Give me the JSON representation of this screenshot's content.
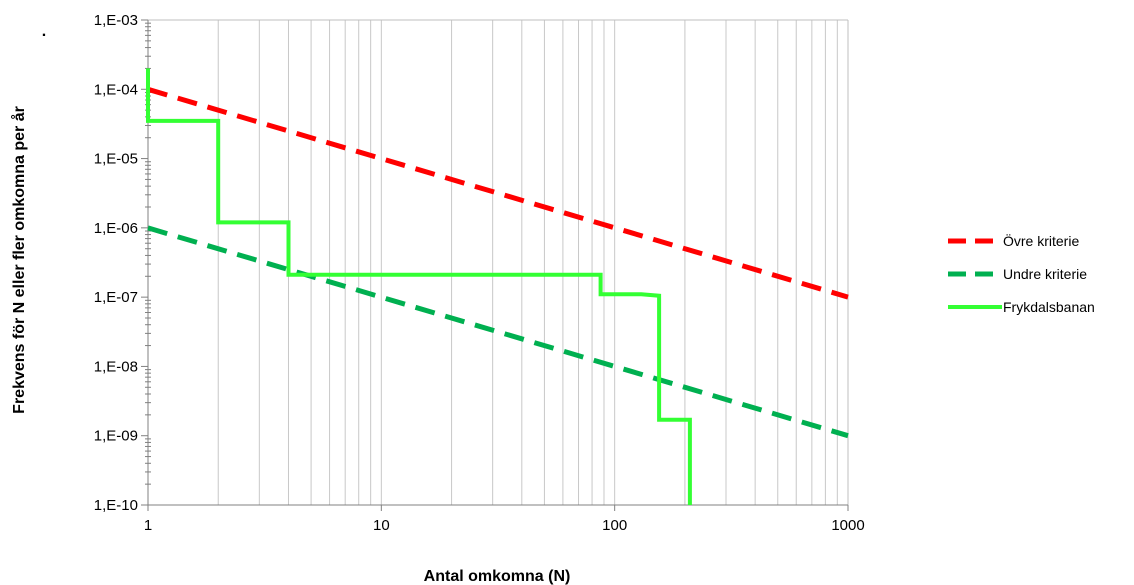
{
  "chart_data": {
    "type": "line",
    "title": "",
    "xlabel": "Antal omkomna (N)",
    "ylabel": "Frekvens för N eller fler omkomna per år",
    "x_scale": "log",
    "y_scale": "log",
    "xlim": [
      1,
      1000
    ],
    "ylim": [
      1e-10,
      0.001
    ],
    "grid": "vertical minor",
    "x_tick_labels": [
      {
        "value": 1,
        "label": "1"
      },
      {
        "value": 10,
        "label": "10"
      },
      {
        "value": 100,
        "label": "100"
      },
      {
        "value": 1000,
        "label": "1000"
      }
    ],
    "y_tick_labels": [
      {
        "value": 0.001,
        "label": "1,E-03"
      },
      {
        "value": 0.0001,
        "label": "1,E-04"
      },
      {
        "value": 1e-05,
        "label": "1,E-05"
      },
      {
        "value": 1e-06,
        "label": "1,E-06"
      },
      {
        "value": 1e-07,
        "label": "1,E-07"
      },
      {
        "value": 1e-08,
        "label": "1,E-08"
      },
      {
        "value": 1e-09,
        "label": "1,E-09"
      },
      {
        "value": 1e-10,
        "label": "1,E-10"
      }
    ],
    "legend_position": "right",
    "series": [
      {
        "name": "Övre kriterie",
        "color": "#ff0000",
        "style": "dashed",
        "points": [
          [
            1,
            0.0001
          ],
          [
            1000,
            1e-07
          ]
        ]
      },
      {
        "name": "Undre kriterie",
        "color": "#00b050",
        "style": "dashed",
        "points": [
          [
            1,
            1e-06
          ],
          [
            1000,
            1e-09
          ]
        ]
      },
      {
        "name": "Frykdalsbanan",
        "color": "#33ff33",
        "style": "solid",
        "points": [
          [
            1,
            0.0002
          ],
          [
            1,
            3.5e-05
          ],
          [
            2,
            3.5e-05
          ],
          [
            2,
            1.2e-06
          ],
          [
            4,
            1.2e-06
          ],
          [
            4,
            2.1e-07
          ],
          [
            87,
            2.1e-07
          ],
          [
            87,
            1.1e-07
          ],
          [
            130,
            1.1e-07
          ],
          [
            155,
            1.05e-07
          ],
          [
            155,
            1.7e-09
          ],
          [
            210,
            1.7e-09
          ],
          [
            210,
            1e-10
          ]
        ]
      }
    ]
  },
  "stray_mark": "."
}
